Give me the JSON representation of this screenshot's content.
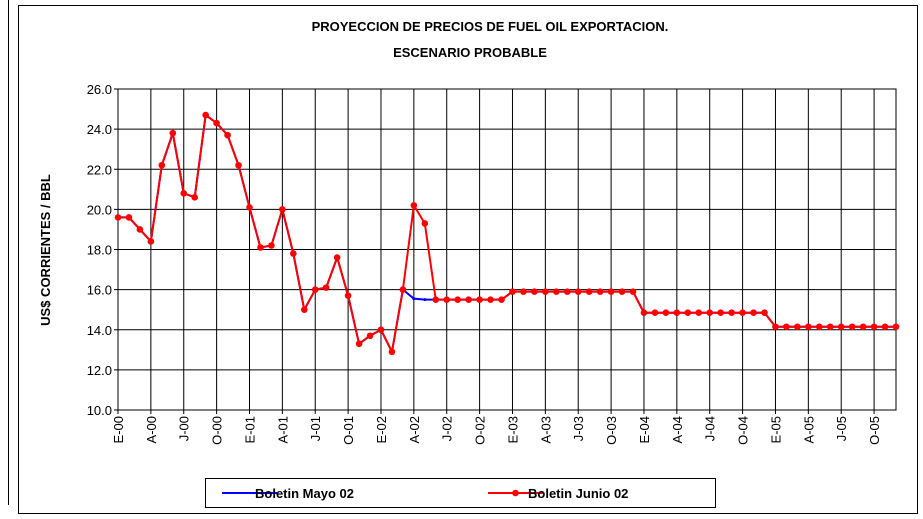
{
  "chart_data": {
    "type": "line",
    "title": "PROYECCION DE PRECIOS DE FUEL OIL EXPORTACION.",
    "subtitle": "ESCENARIO PROBABLE",
    "y_label": "US$ CORRIENTES / BBL",
    "categories": [
      "E-00",
      null,
      null,
      "A-00",
      null,
      null,
      "J-00",
      null,
      null,
      "O-00",
      null,
      null,
      "E-01",
      null,
      null,
      "A-01",
      null,
      null,
      "J-01",
      null,
      null,
      "O-01",
      null,
      null,
      "E-02",
      null,
      null,
      "A-02",
      null,
      null,
      "J-02",
      null,
      null,
      "O-02",
      null,
      null,
      "E-03",
      null,
      null,
      "A-03",
      null,
      null,
      "J-03",
      null,
      null,
      "O-03",
      null,
      null,
      "E-04",
      null,
      null,
      "A-04",
      null,
      null,
      "J-04",
      null,
      null,
      "O-04",
      null,
      null,
      "E-05",
      null,
      null,
      "A-05",
      null,
      null,
      "J-05",
      null,
      null,
      "O-05",
      null,
      null
    ],
    "series": [
      {
        "name": "Boletin Mayo 02",
        "color": "#0000ff",
        "marker": false,
        "values": [
          19.6,
          19.6,
          19.0,
          18.4,
          22.2,
          23.8,
          20.8,
          20.6,
          24.7,
          24.3,
          23.7,
          22.2,
          20.1,
          18.1,
          18.2,
          20.0,
          17.8,
          15.0,
          16.0,
          16.1,
          17.6,
          15.7,
          13.3,
          13.7,
          14.0,
          12.9,
          16.0,
          15.55,
          15.5,
          15.5,
          15.5,
          15.5,
          15.5,
          15.5,
          15.5,
          15.5,
          15.9,
          15.9,
          15.9,
          15.9,
          15.9,
          15.9,
          15.9,
          15.9,
          15.9,
          15.9,
          15.9,
          15.9,
          14.85,
          14.85,
          14.85,
          14.85,
          14.85,
          14.85,
          14.85,
          14.85,
          14.85,
          14.85,
          14.85,
          14.85,
          14.15,
          14.15,
          14.15,
          14.15,
          14.15,
          14.15,
          14.15,
          14.15,
          14.15,
          14.15,
          14.15,
          14.15
        ]
      },
      {
        "name": "Boletin Junio 02",
        "color": "#ff0000",
        "marker": true,
        "values": [
          19.6,
          19.6,
          19.0,
          18.4,
          22.2,
          23.8,
          20.8,
          20.6,
          24.7,
          24.3,
          23.7,
          22.2,
          20.1,
          18.1,
          18.2,
          20.0,
          17.8,
          15.0,
          16.0,
          16.1,
          17.6,
          15.7,
          13.3,
          13.7,
          14.0,
          12.9,
          16.0,
          20.2,
          19.3,
          15.5,
          15.5,
          15.5,
          15.5,
          15.5,
          15.5,
          15.5,
          15.9,
          15.9,
          15.9,
          15.9,
          15.9,
          15.9,
          15.9,
          15.9,
          15.9,
          15.9,
          15.9,
          15.9,
          14.85,
          14.85,
          14.85,
          14.85,
          14.85,
          14.85,
          14.85,
          14.85,
          14.85,
          14.85,
          14.85,
          14.85,
          14.15,
          14.15,
          14.15,
          14.15,
          14.15,
          14.15,
          14.15,
          14.15,
          14.15,
          14.15,
          14.15,
          14.15
        ]
      }
    ],
    "ylim": [
      10,
      26
    ],
    "yticks": [
      {
        "value": 10,
        "label": "10.0"
      },
      {
        "value": 12,
        "label": "12.0"
      },
      {
        "value": 14,
        "label": "14.0"
      },
      {
        "value": 16,
        "label": "16.0"
      },
      {
        "value": 18,
        "label": "18.0"
      },
      {
        "value": 20,
        "label": "20.0"
      },
      {
        "value": 22,
        "label": "22.0"
      },
      {
        "value": 24,
        "label": "24.0"
      },
      {
        "value": 26,
        "label": "26.0"
      }
    ],
    "grid": true
  }
}
